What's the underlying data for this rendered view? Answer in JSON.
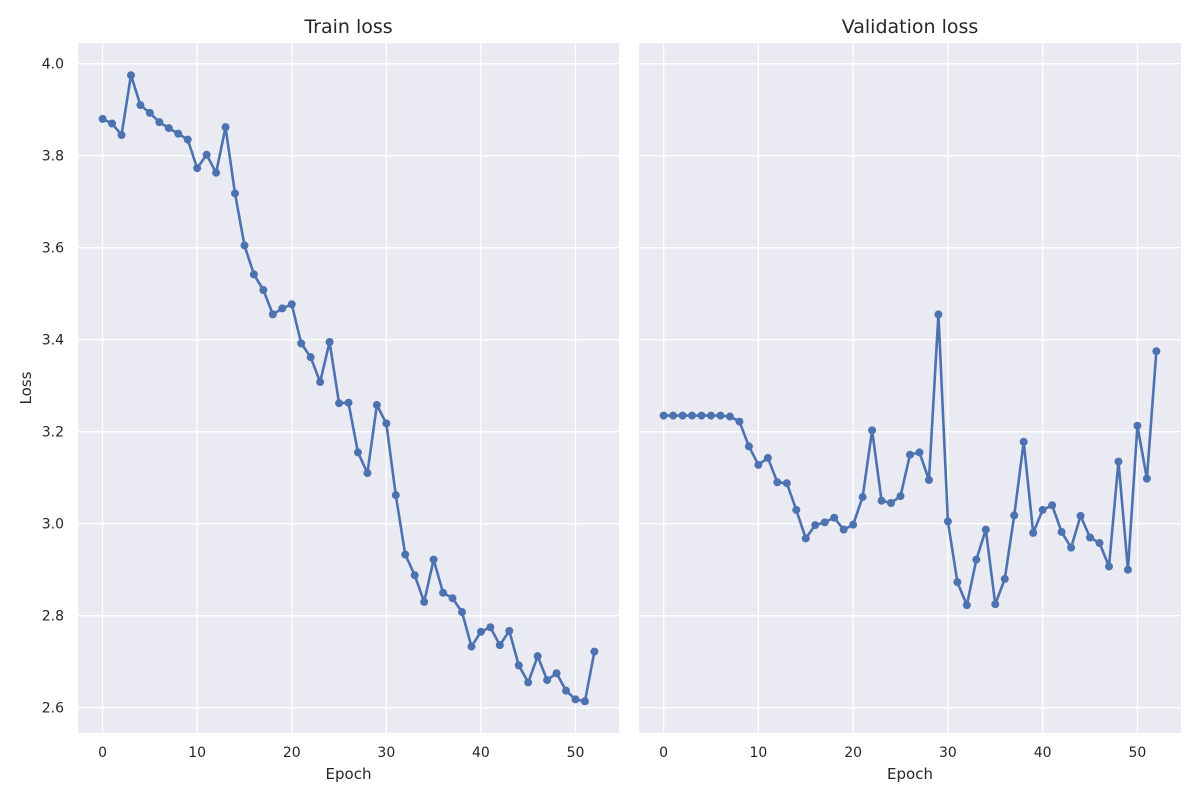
{
  "chart_data": [
    {
      "type": "line",
      "title": "Train loss",
      "xlabel": "Epoch",
      "ylabel": "Loss",
      "xlim": [
        -2.6,
        54.6
      ],
      "ylim": [
        2.545,
        4.045
      ],
      "x_ticks": [
        0,
        10,
        20,
        30,
        40,
        50
      ],
      "y_ticks": [
        2.6,
        2.8,
        3.0,
        3.2,
        3.4,
        3.6,
        3.8,
        4.0
      ],
      "y_tick_labels": [
        "2.6",
        "2.8",
        "3.0",
        "3.2",
        "3.4",
        "3.6",
        "3.8",
        "4.0"
      ],
      "grid": true,
      "color": "#4c72b0",
      "series": [
        {
          "x": [
            0,
            1,
            2,
            3,
            4,
            5,
            6,
            7,
            8,
            9,
            10,
            11,
            12,
            13,
            14,
            15,
            16,
            17,
            18,
            19,
            20,
            21,
            22,
            23,
            24,
            25,
            26,
            27,
            28,
            29,
            30,
            31,
            32,
            33,
            34,
            35,
            36,
            37,
            38,
            39,
            40,
            41,
            42,
            43,
            44,
            45,
            46,
            47,
            48,
            49,
            50,
            51,
            52
          ],
          "values": [
            3.88,
            3.87,
            3.845,
            3.975,
            3.91,
            3.893,
            3.873,
            3.86,
            3.848,
            3.835,
            3.773,
            3.802,
            3.763,
            3.862,
            3.718,
            3.605,
            3.542,
            3.508,
            3.455,
            3.468,
            3.477,
            3.392,
            3.362,
            3.308,
            3.395,
            3.262,
            3.263,
            3.155,
            3.11,
            3.258,
            3.218,
            3.062,
            2.933,
            2.888,
            2.83,
            2.922,
            2.85,
            2.838,
            2.808,
            2.733,
            2.765,
            2.775,
            2.736,
            2.767,
            2.692,
            2.655,
            2.712,
            2.66,
            2.675,
            2.637,
            2.618,
            2.614,
            2.722
          ]
        }
      ]
    },
    {
      "type": "line",
      "title": "Validation loss",
      "xlabel": "Epoch",
      "ylabel": "",
      "xlim": [
        -2.6,
        54.6
      ],
      "ylim": [
        2.545,
        4.045
      ],
      "x_ticks": [
        0,
        10,
        20,
        30,
        40,
        50
      ],
      "grid": true,
      "color": "#4c72b0",
      "series": [
        {
          "x": [
            0,
            1,
            2,
            3,
            4,
            5,
            6,
            7,
            8,
            9,
            10,
            11,
            12,
            13,
            14,
            15,
            16,
            17,
            18,
            19,
            20,
            21,
            22,
            23,
            24,
            25,
            26,
            27,
            28,
            29,
            30,
            31,
            32,
            33,
            34,
            35,
            36,
            37,
            38,
            39,
            40,
            41,
            42,
            43,
            44,
            45,
            46,
            47,
            48,
            49,
            50,
            51,
            52
          ],
          "values": [
            3.235,
            3.235,
            3.235,
            3.235,
            3.235,
            3.235,
            3.235,
            3.233,
            3.222,
            3.168,
            3.128,
            3.143,
            3.09,
            3.088,
            3.03,
            2.968,
            2.997,
            3.003,
            3.013,
            2.987,
            2.998,
            3.058,
            3.203,
            3.05,
            3.045,
            3.06,
            3.15,
            3.155,
            3.095,
            3.455,
            3.005,
            2.873,
            2.823,
            2.922,
            2.987,
            2.825,
            2.88,
            3.018,
            3.178,
            2.98,
            3.03,
            3.04,
            2.982,
            2.948,
            3.017,
            2.97,
            2.958,
            2.907,
            3.135,
            2.9,
            3.213,
            3.098,
            3.375
          ]
        }
      ]
    }
  ]
}
